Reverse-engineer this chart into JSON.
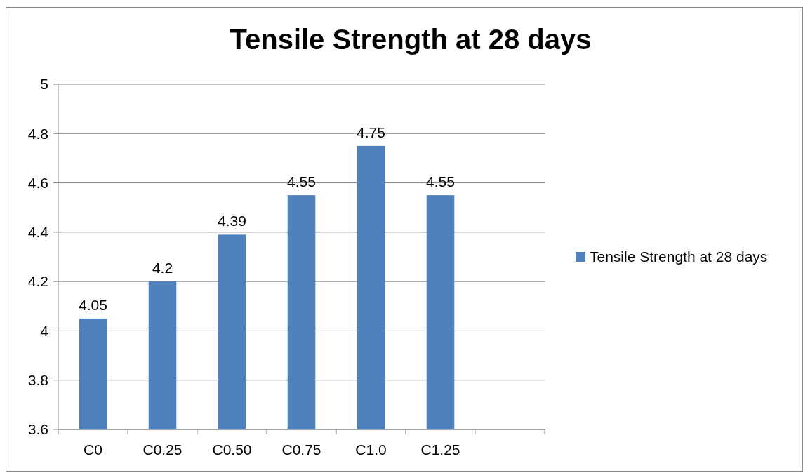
{
  "chart_data": {
    "type": "bar",
    "title": "Tensile Strength at 28 days",
    "categories": [
      "C0",
      "C0.25",
      "C0.50",
      "C0.75",
      "C1.0",
      "C1.25",
      null
    ],
    "series": [
      {
        "name": "Tensile Strength at 28 days",
        "color": "#4f81bd",
        "values": [
          4.05,
          4.2,
          4.39,
          4.55,
          4.75,
          4.55,
          null
        ]
      }
    ],
    "ylim": [
      3.6,
      5
    ],
    "yticks": [
      3.6,
      3.8,
      4,
      4.2,
      4.4,
      4.6,
      4.8,
      5
    ],
    "grid": "y",
    "data_labels": true,
    "legend": "right"
  }
}
